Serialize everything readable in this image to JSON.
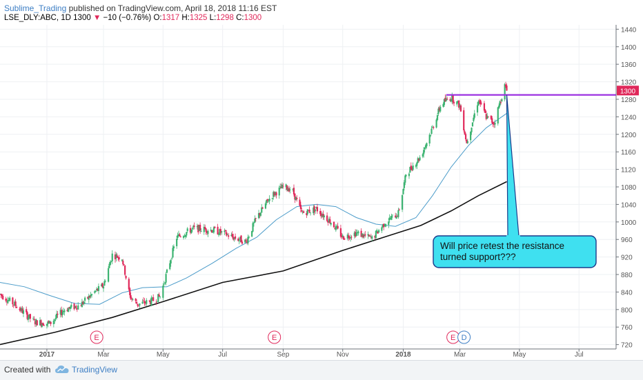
{
  "header": {
    "author": "Sublime_Trading",
    "published": " published on TradingView.com, April 18, 2018 11:16 EST",
    "symbol": "LSE_DLY:ABC, 1D",
    "last": "1300",
    "change": "−10 (−0.76%)",
    "o_label": "O:",
    "o_value": "1317",
    "h_label": "H:",
    "h_value": "1325",
    "l_label": "L:",
    "l_value": "1298",
    "c_label": "C:",
    "c_value": "1300"
  },
  "footer": {
    "created_with": "Created with",
    "brand": "TradingView"
  },
  "colors": {
    "up": "#3cb371",
    "down": "#e0285a",
    "ma_fast": "#4a9bc9",
    "ma_slow": "#111111",
    "resistance": "#9b30e0",
    "callout_fill": "#3fe0f0",
    "callout_border": "#1a3a8a",
    "event_e": "#e0285a",
    "event_d": "#3d7ec4"
  },
  "chart_data": {
    "type": "candlestick",
    "y_axis": {
      "range": [
        710,
        1450
      ],
      "ticks": [
        720,
        760,
        800,
        840,
        880,
        920,
        960,
        1000,
        1040,
        1080,
        1120,
        1160,
        1200,
        1240,
        1280,
        1320,
        1360,
        1400,
        1440
      ],
      "position": "right"
    },
    "x_axis": {
      "range": [
        "2016-11-15",
        "2018-08-08"
      ],
      "tick_labels": [
        "2017",
        "Mar",
        "May",
        "Jul",
        "Sep",
        "Nov",
        "2018",
        "Mar",
        "May",
        "Jul"
      ],
      "tick_dates": [
        "2017-01-02",
        "2017-03-01",
        "2017-05-01",
        "2017-07-01",
        "2017-09-01",
        "2017-11-01",
        "2018-01-02",
        "2018-03-01",
        "2018-05-01",
        "2018-07-01"
      ]
    },
    "price_path": [
      [
        "2016-11-15",
        835
      ],
      [
        "2016-12-01",
        810
      ],
      [
        "2016-12-20",
        772
      ],
      [
        "2017-01-05",
        768
      ],
      [
        "2017-01-20",
        800
      ],
      [
        "2017-02-05",
        810
      ],
      [
        "2017-02-20",
        840
      ],
      [
        "2017-03-01",
        855
      ],
      [
        "2017-03-10",
        925
      ],
      [
        "2017-03-20",
        918
      ],
      [
        "2017-03-28",
        830
      ],
      [
        "2017-04-05",
        812
      ],
      [
        "2017-04-20",
        820
      ],
      [
        "2017-04-28",
        830
      ],
      [
        "2017-05-05",
        885
      ],
      [
        "2017-05-15",
        965
      ],
      [
        "2017-06-01",
        985
      ],
      [
        "2017-06-20",
        982
      ],
      [
        "2017-07-01",
        975
      ],
      [
        "2017-07-15",
        962
      ],
      [
        "2017-07-25",
        955
      ],
      [
        "2017-08-05",
        1010
      ],
      [
        "2017-08-20",
        1060
      ],
      [
        "2017-09-01",
        1080
      ],
      [
        "2017-09-10",
        1075
      ],
      [
        "2017-09-20",
        1020
      ],
      [
        "2017-10-05",
        1030
      ],
      [
        "2017-10-20",
        1000
      ],
      [
        "2017-11-01",
        965
      ],
      [
        "2017-11-15",
        975
      ],
      [
        "2017-12-01",
        962
      ],
      [
        "2017-12-15",
        1000
      ],
      [
        "2017-12-28",
        1020
      ],
      [
        "2018-01-05",
        1110
      ],
      [
        "2018-01-20",
        1150
      ],
      [
        "2018-02-01",
        1215
      ],
      [
        "2018-02-10",
        1270
      ],
      [
        "2018-02-20",
        1285
      ],
      [
        "2018-03-01",
        1265
      ],
      [
        "2018-03-08",
        1180
      ],
      [
        "2018-03-14",
        1230
      ],
      [
        "2018-03-20",
        1280
      ],
      [
        "2018-03-28",
        1240
      ],
      [
        "2018-04-05",
        1225
      ],
      [
        "2018-04-10",
        1265
      ],
      [
        "2018-04-16",
        1310
      ],
      [
        "2018-04-18",
        1300
      ]
    ],
    "series": [
      {
        "type": "line",
        "points": [
          [
            "2016-11-15",
            862
          ],
          [
            "2016-12-10",
            852
          ],
          [
            "2017-01-05",
            832
          ],
          [
            "2017-01-30",
            814
          ],
          [
            "2017-02-25",
            812
          ],
          [
            "2017-03-20",
            838
          ],
          [
            "2017-04-10",
            850
          ],
          [
            "2017-05-05",
            852
          ],
          [
            "2017-05-25",
            872
          ],
          [
            "2017-06-20",
            905
          ],
          [
            "2017-07-15",
            940
          ],
          [
            "2017-08-05",
            965
          ],
          [
            "2017-08-25",
            1005
          ],
          [
            "2017-09-15",
            1035
          ],
          [
            "2017-10-05",
            1040
          ],
          [
            "2017-10-25",
            1035
          ],
          [
            "2017-11-15",
            1010
          ],
          [
            "2017-12-05",
            995
          ],
          [
            "2017-12-25",
            990
          ],
          [
            "2018-01-15",
            1010
          ],
          [
            "2018-02-01",
            1060
          ],
          [
            "2018-02-20",
            1125
          ],
          [
            "2018-03-10",
            1175
          ],
          [
            "2018-03-28",
            1215
          ],
          [
            "2018-04-18",
            1248
          ]
        ]
      },
      {
        "type": "line",
        "points": [
          [
            "2016-11-15",
            720
          ],
          [
            "2017-01-10",
            748
          ],
          [
            "2017-03-10",
            782
          ],
          [
            "2017-05-01",
            818
          ],
          [
            "2017-07-01",
            862
          ],
          [
            "2017-09-01",
            888
          ],
          [
            "2017-11-01",
            935
          ],
          [
            "2017-12-20",
            970
          ],
          [
            "2018-01-20",
            992
          ],
          [
            "2018-02-20",
            1025
          ],
          [
            "2018-03-20",
            1060
          ],
          [
            "2018-04-18",
            1092
          ]
        ]
      }
    ],
    "price_label": "1300",
    "annotations": {
      "resistance": {
        "price": 1290,
        "from": "2018-02-15"
      },
      "callout_text": [
        "Will price retest the resistance",
        "turned support???"
      ],
      "callout_target": [
        "2018-04-18",
        1290
      ]
    },
    "events": [
      {
        "label": "E",
        "date": "2017-02-22",
        "kind": "earnings"
      },
      {
        "label": "E",
        "date": "2017-08-23",
        "kind": "earnings"
      },
      {
        "label": "E",
        "date": "2018-02-22",
        "kind": "earnings"
      },
      {
        "label": "D",
        "date": "2018-03-01",
        "kind": "dividend"
      }
    ]
  }
}
